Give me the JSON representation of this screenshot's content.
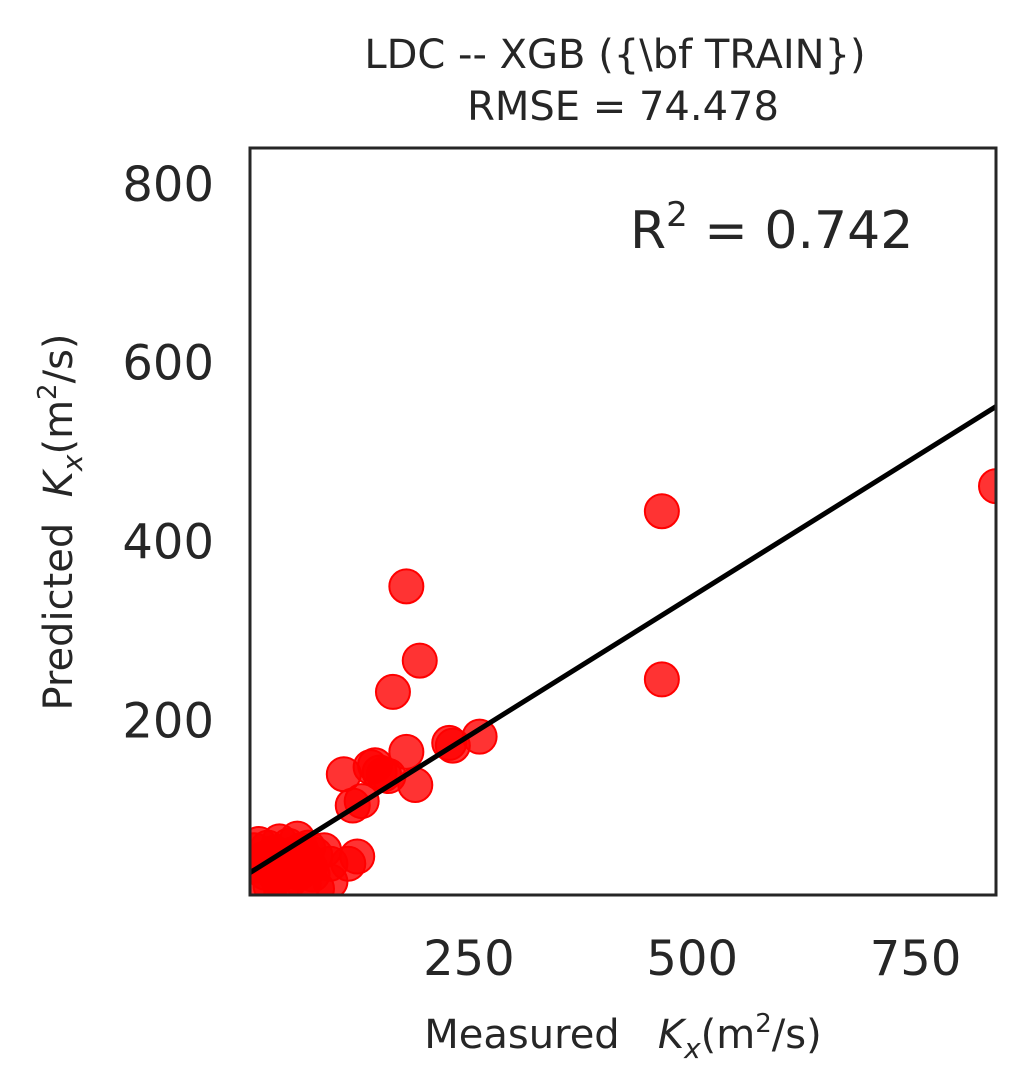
{
  "chart_data": {
    "type": "scatter",
    "title": "LDC -- XGB ({\\bf TRAIN})",
    "subtitle": "RMSE = 74.478",
    "xlabel": {
      "prefix": "Measured   ",
      "var": "K",
      "sub": "x",
      "unit_open": "(m",
      "unit_sup": "2",
      "unit_close": "/s)"
    },
    "ylabel": {
      "prefix": "Predicted  ",
      "var": "K",
      "sub": "x",
      "unit_open": "(m",
      "unit_sup": "2",
      "unit_close": "/s)"
    },
    "annotation": {
      "text": "R",
      "sup": "2",
      "rest": " = 0.742"
    },
    "xlim": [
      5,
      840
    ],
    "ylim": [
      5,
      840
    ],
    "xticks": [
      250,
      500,
      750
    ],
    "yticks": [
      200,
      400,
      600,
      800
    ],
    "grid": false,
    "colors": {
      "points": "#ff0000",
      "fit_line": "#000000",
      "frame": "#262626"
    },
    "fit_line": {
      "x": [
        5,
        840
      ],
      "y": [
        30,
        551
      ]
    },
    "points": [
      {
        "x": 10,
        "y": 55
      },
      {
        "x": 12,
        "y": 38
      },
      {
        "x": 15,
        "y": 62
      },
      {
        "x": 18,
        "y": 20
      },
      {
        "x": 20,
        "y": 45
      },
      {
        "x": 22,
        "y": 30
      },
      {
        "x": 25,
        "y": 58
      },
      {
        "x": 28,
        "y": 15
      },
      {
        "x": 30,
        "y": 40
      },
      {
        "x": 32,
        "y": 52
      },
      {
        "x": 35,
        "y": 25
      },
      {
        "x": 38,
        "y": 65
      },
      {
        "x": 40,
        "y": 10
      },
      {
        "x": 42,
        "y": 48
      },
      {
        "x": 45,
        "y": 35
      },
      {
        "x": 48,
        "y": 60
      },
      {
        "x": 50,
        "y": 22
      },
      {
        "x": 52,
        "y": 50
      },
      {
        "x": 55,
        "y": 42
      },
      {
        "x": 58,
        "y": 68
      },
      {
        "x": 60,
        "y": 30
      },
      {
        "x": 62,
        "y": 55
      },
      {
        "x": 65,
        "y": 18
      },
      {
        "x": 68,
        "y": 45
      },
      {
        "x": 70,
        "y": 58
      },
      {
        "x": 72,
        "y": 36
      },
      {
        "x": 75,
        "y": 28
      },
      {
        "x": 78,
        "y": 50
      },
      {
        "x": 80,
        "y": 12
      },
      {
        "x": 88,
        "y": 55
      },
      {
        "x": 95,
        "y": 20
      },
      {
        "x": 95,
        "y": 40
      },
      {
        "x": 110,
        "y": 140
      },
      {
        "x": 115,
        "y": 40
      },
      {
        "x": 125,
        "y": 48
      },
      {
        "x": 120,
        "y": 105
      },
      {
        "x": 130,
        "y": 110
      },
      {
        "x": 140,
        "y": 148
      },
      {
        "x": 145,
        "y": 150
      },
      {
        "x": 150,
        "y": 142
      },
      {
        "x": 155,
        "y": 140
      },
      {
        "x": 160,
        "y": 138
      },
      {
        "x": 165,
        "y": 232
      },
      {
        "x": 180,
        "y": 350
      },
      {
        "x": 180,
        "y": 165
      },
      {
        "x": 190,
        "y": 128
      },
      {
        "x": 195,
        "y": 267
      },
      {
        "x": 228,
        "y": 175
      },
      {
        "x": 232,
        "y": 172
      },
      {
        "x": 262,
        "y": 182
      },
      {
        "x": 466,
        "y": 434
      },
      {
        "x": 466,
        "y": 246
      },
      {
        "x": 840,
        "y": 462
      }
    ]
  }
}
